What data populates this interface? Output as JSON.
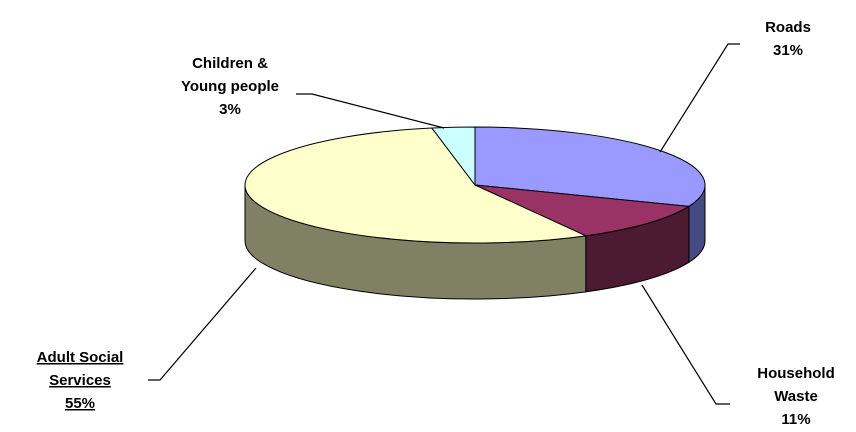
{
  "chart_data": {
    "type": "pie",
    "title": "",
    "three_d": true,
    "slices": [
      {
        "label_lines": [
          "Roads"
        ],
        "value": 31,
        "value_text": "31%",
        "top_color": "#9999ff",
        "side_color": "#464a82",
        "underlined": false
      },
      {
        "label_lines": [
          "Household",
          "Waste"
        ],
        "value": 11,
        "value_text": "11%",
        "top_color": "#993366",
        "side_color": "#4d1a33",
        "underlined": false
      },
      {
        "label_lines": [
          "Adult Social",
          "Services"
        ],
        "value": 55,
        "value_text": "55%",
        "top_color": "#ffffcc",
        "side_color": "#808064",
        "underlined": true
      },
      {
        "label_lines": [
          "Children &",
          "Young people"
        ],
        "value": 3,
        "value_text": "3%",
        "top_color": "#ccffff",
        "side_color": "#668080",
        "underlined": false
      }
    ],
    "legend": "none",
    "data_labels": "outside with leader lines"
  }
}
